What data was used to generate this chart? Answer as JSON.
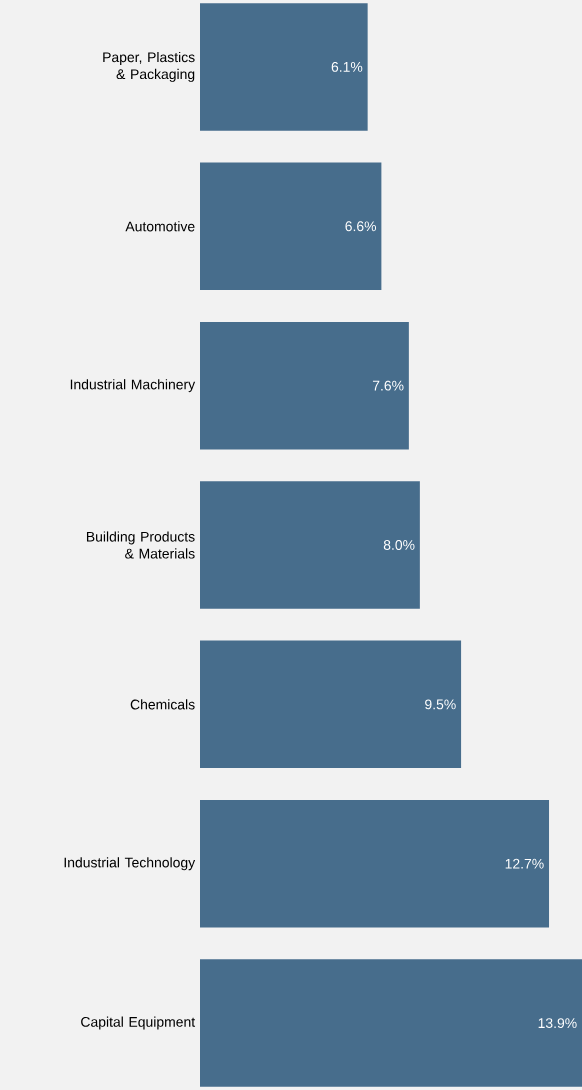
{
  "chart_data": {
    "type": "bar",
    "orientation": "horizontal",
    "categories": [
      "Paper, Plastics & Packaging",
      "Automotive",
      "Industrial Machinery",
      "Building Products & Materials",
      "Chemicals",
      "Industrial Technology",
      "Capital Equipment"
    ],
    "values": [
      6.1,
      6.6,
      7.6,
      8.0,
      9.5,
      12.7,
      13.9
    ],
    "value_labels": [
      "6.1%",
      "6.6%",
      "7.6%",
      "8.0%",
      "9.5%",
      "12.7%",
      "13.9%"
    ],
    "color": "#476d8c"
  }
}
